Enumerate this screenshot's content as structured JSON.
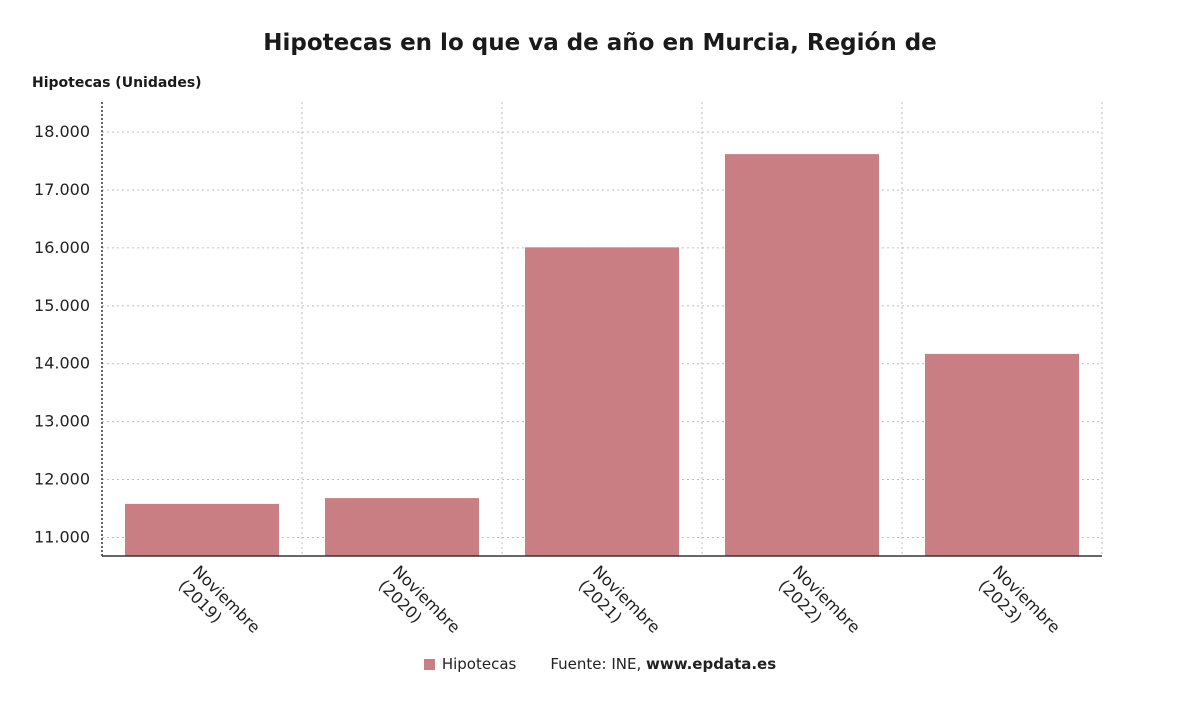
{
  "chart_data": {
    "type": "bar",
    "title": "Hipotecas en lo que va de año en Murcia, Región de",
    "ylabel": "Hipotecas (Unidades)",
    "xlabel": "",
    "categories": [
      "Noviembre (2019)",
      "Noviembre (2020)",
      "Noviembre (2021)",
      "Noviembre (2022)",
      "Noviembre (2023)"
    ],
    "category_lines": [
      [
        "Noviembre",
        "(2019)"
      ],
      [
        "Noviembre",
        "(2020)"
      ],
      [
        "Noviembre",
        "(2021)"
      ],
      [
        "Noviembre",
        "(2022)"
      ],
      [
        "Noviembre",
        "(2023)"
      ]
    ],
    "series": [
      {
        "name": "Hipotecas",
        "values": [
          11580,
          11680,
          16010,
          17620,
          14170
        ],
        "color": "#c97e84"
      }
    ],
    "ylim": [
      10680,
      18520
    ],
    "yticks": [
      11000,
      12000,
      13000,
      14000,
      15000,
      16000,
      17000,
      18000
    ],
    "ytick_labels": [
      "11.000",
      "12.000",
      "13.000",
      "14.000",
      "15.000",
      "16.000",
      "17.000",
      "18.000"
    ],
    "grid": true,
    "legend": "bottom"
  },
  "footer": {
    "legend_label": "Hipotecas",
    "source_prefix": "Fuente: INE, ",
    "source_site": "www.epdata.es"
  },
  "colors": {
    "bar": "#c97e84",
    "grid": "#bdbdbd",
    "axis": "#333333"
  }
}
